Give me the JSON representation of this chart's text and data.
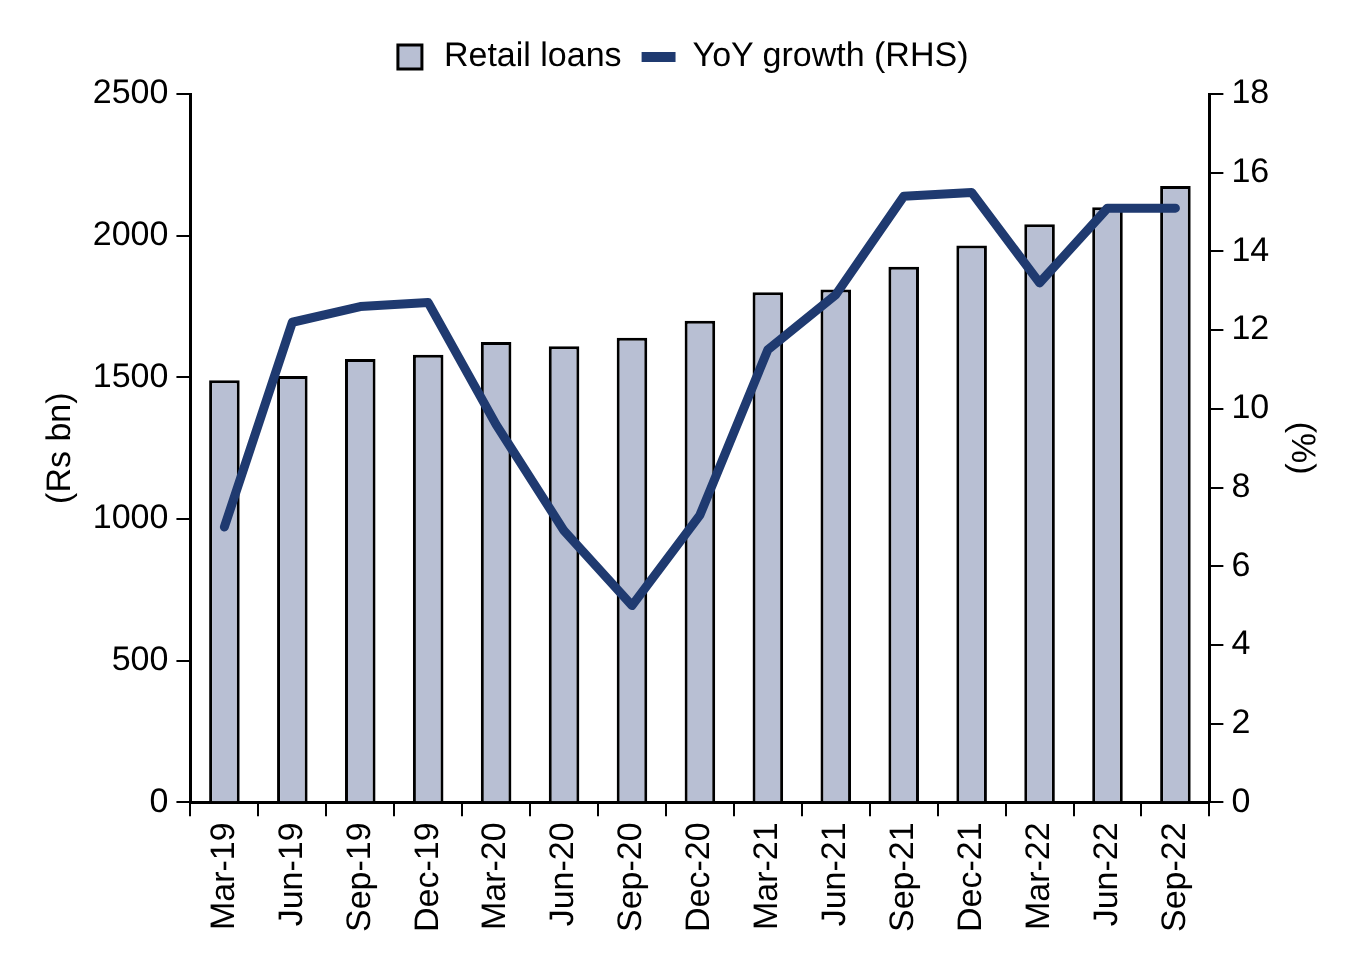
{
  "chart_data": {
    "type": "bar",
    "ylabel": "(Rs bn)",
    "y2label": "(%)",
    "categories": [
      "Mar-19",
      "Jun-19",
      "Sep-19",
      "Dec-19",
      "Mar-20",
      "Jun-20",
      "Sep-20",
      "Dec-20",
      "Mar-21",
      "Jun-21",
      "Sep-21",
      "Dec-21",
      "Mar-22",
      "Jun-22",
      "Sep-22"
    ],
    "series": [
      {
        "name": "Retail loans",
        "color": "#b8bfd3",
        "values": [
          1490,
          1505,
          1565,
          1580,
          1625,
          1610,
          1640,
          1700,
          1800,
          1810,
          1890,
          1965,
          2040,
          2100,
          2175
        ]
      },
      {
        "name": "YoY growth (RHS)",
        "type": "line",
        "axis": "y2",
        "color": "#1f3a70",
        "values": [
          7.0,
          12.2,
          12.6,
          12.7,
          9.6,
          6.9,
          5.0,
          7.3,
          11.5,
          12.9,
          15.4,
          15.5,
          13.2,
          15.1,
          15.1
        ]
      }
    ],
    "ylim": [
      0,
      2500
    ],
    "yticks": [
      0,
      500,
      1000,
      1500,
      2000,
      2500
    ],
    "y2lim": [
      0,
      18
    ],
    "y2ticks": [
      0,
      2,
      4,
      6,
      8,
      10,
      12,
      14,
      16,
      18
    ],
    "grid": false,
    "legend": "top",
    "marker": "none",
    "line_style": "solid"
  }
}
